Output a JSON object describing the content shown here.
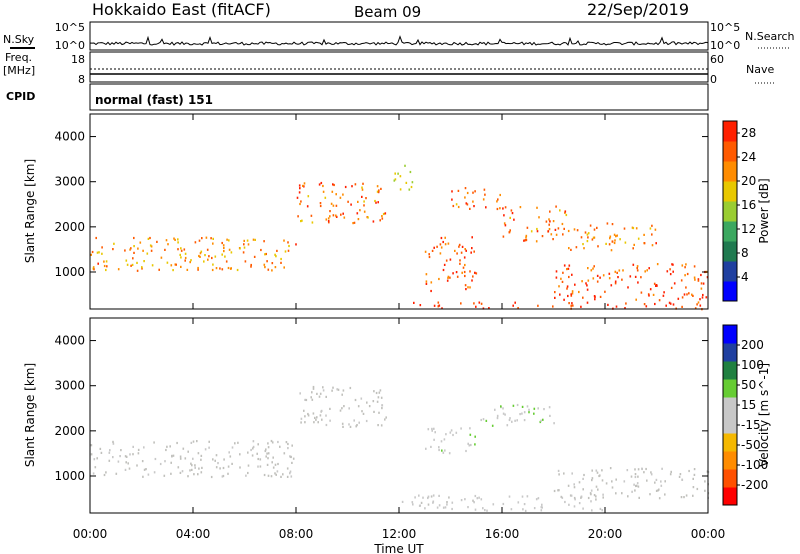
{
  "header": {
    "station": "Hokkaido East (fitACF)",
    "beam": "Beam 09",
    "date": "22/Sep/2019"
  },
  "top_panels": {
    "nsky_label": "N.Sky",
    "nsearch_label": "N.Search",
    "noise_ticks_left": [
      "10^5",
      "10^0"
    ],
    "noise_ticks_right": [
      "10^5",
      "10^0"
    ],
    "freq_label_1": "Freq.",
    "freq_label_2": "[MHz]",
    "freq_ticks": [
      "18",
      "8"
    ],
    "nave_label": "Nave",
    "nave_ticks": [
      "60",
      "0"
    ],
    "cpid_label": "CPID",
    "cpid_value": "normal (fast) 151"
  },
  "colors": {
    "power_scale": [
      "#0000ff",
      "#2040a0",
      "#207a50",
      "#3ca860",
      "#9acd32",
      "#e8c800",
      "#ff8c00",
      "#ff5a00",
      "#ff2000"
    ],
    "velocity_scale": [
      "#ff0000",
      "#ff5000",
      "#ff8c00",
      "#f5b800",
      "#c8c8c8",
      "#c8c8c8",
      "#66cc33",
      "#208040",
      "#2040a0",
      "#0000ff"
    ]
  },
  "chart_data": [
    {
      "type": "heatmap",
      "title": "",
      "ylabel": "Slant Range [km]",
      "ylim": [
        180,
        4500
      ],
      "yticks": [
        "1000",
        "2000",
        "3000",
        "4000"
      ],
      "xlim": [
        "00:00",
        "24:00"
      ],
      "colorbar": {
        "label": "Power [dB]",
        "ticks": [
          "4",
          "8",
          "12",
          "16",
          "20",
          "24",
          "28"
        ],
        "range": [
          0,
          30
        ]
      },
      "scatter_regions": [
        {
          "x": [
            0,
            8
          ],
          "range": [
            1050,
            1800
          ],
          "value": 22
        },
        {
          "x": [
            8,
            11.5
          ],
          "range": [
            2100,
            3000
          ],
          "value": 24
        },
        {
          "x": [
            11.7,
            12.5
          ],
          "range": [
            2800,
            3400
          ],
          "value": 18
        },
        {
          "x": [
            13,
            15
          ],
          "range": [
            600,
            1800
          ],
          "value": 25
        },
        {
          "x": [
            14,
            16
          ],
          "range": [
            2400,
            2900
          ],
          "value": 24
        },
        {
          "x": [
            16,
            18.5
          ],
          "range": [
            1700,
            2500
          ],
          "value": 24
        },
        {
          "x": [
            18.5,
            22
          ],
          "range": [
            1500,
            2100
          ],
          "value": 22
        },
        {
          "x": [
            18,
            24
          ],
          "range": [
            400,
            1200
          ],
          "value": 26
        },
        {
          "x": [
            12,
            24
          ],
          "range": [
            200,
            350
          ],
          "value": 28
        }
      ]
    },
    {
      "type": "heatmap",
      "title": "",
      "ylabel": "Slant Range [km]",
      "xlabel": "Time UT",
      "ylim": [
        180,
        4500
      ],
      "yticks": [
        "1000",
        "2000",
        "3000",
        "4000"
      ],
      "xlim": [
        "00:00",
        "24:00"
      ],
      "xticks": [
        "00:00",
        "04:00",
        "08:00",
        "12:00",
        "16:00",
        "20:00",
        "00:00"
      ],
      "colorbar": {
        "label": "Velocity [m s^-1]",
        "ticks": [
          "200",
          "100",
          "50",
          "15",
          "-15",
          "-50",
          "-100",
          "-200"
        ],
        "range": [
          -250,
          250
        ]
      },
      "scatter_regions": [
        {
          "x": [
            0,
            8
          ],
          "range": [
            1000,
            1800
          ],
          "value": 0
        },
        {
          "x": [
            8,
            11.5
          ],
          "range": [
            2100,
            3000
          ],
          "value": -5
        },
        {
          "x": [
            13,
            15
          ],
          "range": [
            1500,
            2100
          ],
          "value": 45
        },
        {
          "x": [
            15,
            18
          ],
          "range": [
            2100,
            2600
          ],
          "value": 40
        },
        {
          "x": [
            18,
            24
          ],
          "range": [
            500,
            1200
          ],
          "value": 0
        },
        {
          "x": [
            12,
            20
          ],
          "range": [
            250,
            600
          ],
          "value": 30
        }
      ]
    }
  ]
}
